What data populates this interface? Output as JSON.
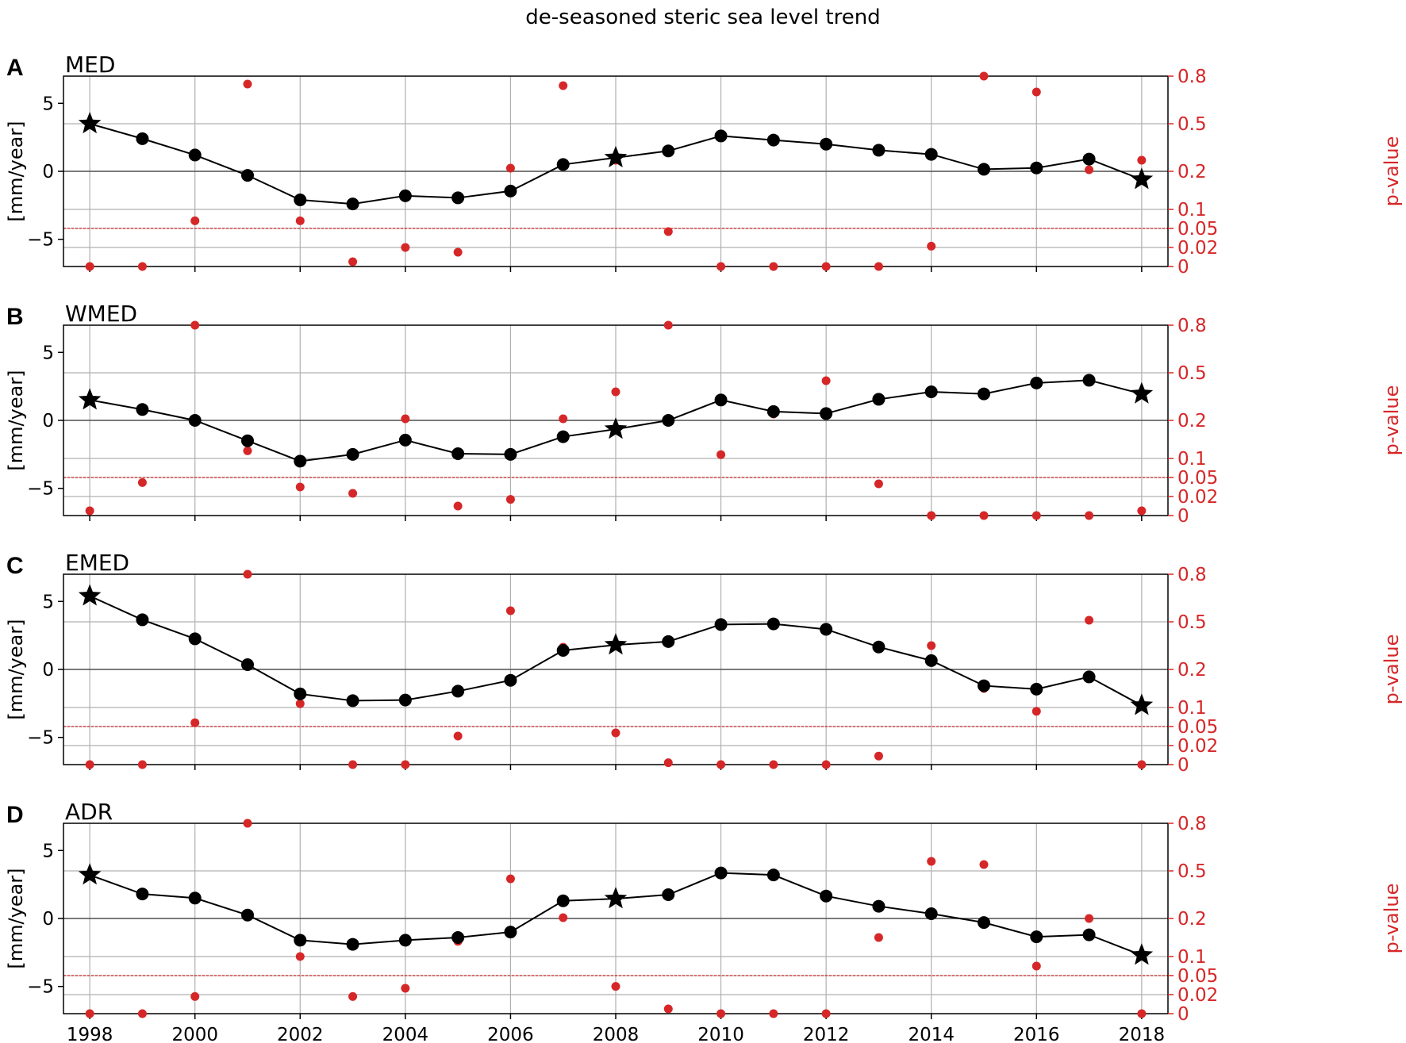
{
  "title": "de-seasoned steric sea level trend",
  "colors": {
    "trend": "#000000",
    "pvalue": "#d62728",
    "grid": "#b0b0b0",
    "zero_line": "#555555",
    "threshold": "#d62728"
  },
  "chart_data": {
    "type": "line",
    "x": [
      1998,
      1999,
      2000,
      2001,
      2002,
      2003,
      2004,
      2005,
      2006,
      2007,
      2008,
      2009,
      2010,
      2011,
      2012,
      2013,
      2014,
      2015,
      2016,
      2017,
      2018
    ],
    "x_ticks": [
      1998,
      2000,
      2002,
      2004,
      2006,
      2008,
      2010,
      2012,
      2014,
      2016,
      2018
    ],
    "xlim": [
      1997.5,
      2018.5
    ],
    "ylabel": "[mm/year]",
    "ylim": [
      -7,
      7
    ],
    "y_ticks": [
      -5,
      0,
      5
    ],
    "y2label": "p-value",
    "y2_ticks": [
      "0.8",
      "0.5",
      "0.2",
      "0.1",
      "0.05",
      "0.02",
      "0"
    ],
    "p_threshold": "0.05",
    "star_years": [
      1998,
      2008,
      2018
    ],
    "grid": true,
    "panels": [
      {
        "letter": "A",
        "name": "MED",
        "trend": [
          3.5,
          2.4,
          1.2,
          -0.3,
          -2.1,
          -2.4,
          -1.8,
          -1.95,
          -1.45,
          0.5,
          1.0,
          1.5,
          2.6,
          2.3,
          2.0,
          1.55,
          1.25,
          0.15,
          0.25,
          0.9,
          -0.6
        ],
        "pvalue": [
          0.0,
          0.0,
          0.07,
          0.75,
          0.07,
          0.005,
          0.02,
          0.015,
          0.22,
          0.74,
          0.27,
          0.045,
          0.0,
          0.0,
          0.0,
          0.0,
          0.022,
          0.8,
          0.7,
          0.21,
          0.27
        ]
      },
      {
        "letter": "B",
        "name": "WMED",
        "trend": [
          1.5,
          0.8,
          0.0,
          -1.5,
          -3.0,
          -2.5,
          -1.45,
          -2.45,
          -2.5,
          -1.2,
          -0.65,
          0.0,
          1.5,
          0.65,
          0.5,
          1.55,
          2.1,
          1.95,
          2.75,
          2.95,
          1.95
        ],
        "pvalue": [
          0.005,
          0.042,
          0.8,
          0.12,
          0.035,
          0.025,
          0.21,
          0.01,
          0.017,
          0.21,
          0.38,
          0.8,
          0.11,
          0.24,
          0.45,
          0.04,
          0.0,
          0.0,
          0.0,
          0.0,
          0.005
        ]
      },
      {
        "letter": "C",
        "name": "EMED",
        "trend": [
          5.4,
          3.65,
          2.25,
          0.35,
          -1.8,
          -2.3,
          -2.25,
          -1.6,
          -0.8,
          1.4,
          1.8,
          2.05,
          3.3,
          3.35,
          2.95,
          1.65,
          0.65,
          -1.2,
          -1.45,
          -0.55,
          -2.65
        ],
        "pvalue": [
          0.0,
          0.0,
          0.06,
          0.8,
          0.11,
          0.0,
          0.0,
          0.035,
          0.57,
          0.34,
          0.04,
          0.002,
          0.0,
          0.0,
          0.0,
          0.009,
          0.35,
          0.15,
          0.09,
          0.51,
          0.0
        ]
      },
      {
        "letter": "D",
        "name": "ADR",
        "trend": [
          3.2,
          1.8,
          1.5,
          0.25,
          -1.6,
          -1.9,
          -1.6,
          -1.4,
          -1.0,
          1.3,
          1.45,
          1.75,
          3.35,
          3.2,
          1.65,
          0.9,
          0.35,
          -0.3,
          -1.35,
          -1.2,
          -2.7
        ],
        "pvalue": [
          0.0,
          0.0,
          0.018,
          0.8,
          0.1,
          0.018,
          0.03,
          0.14,
          0.45,
          0.205,
          0.033,
          0.005,
          0.0,
          0.0,
          0.0,
          0.15,
          0.56,
          0.54,
          0.075,
          0.2,
          0.0
        ]
      }
    ]
  }
}
